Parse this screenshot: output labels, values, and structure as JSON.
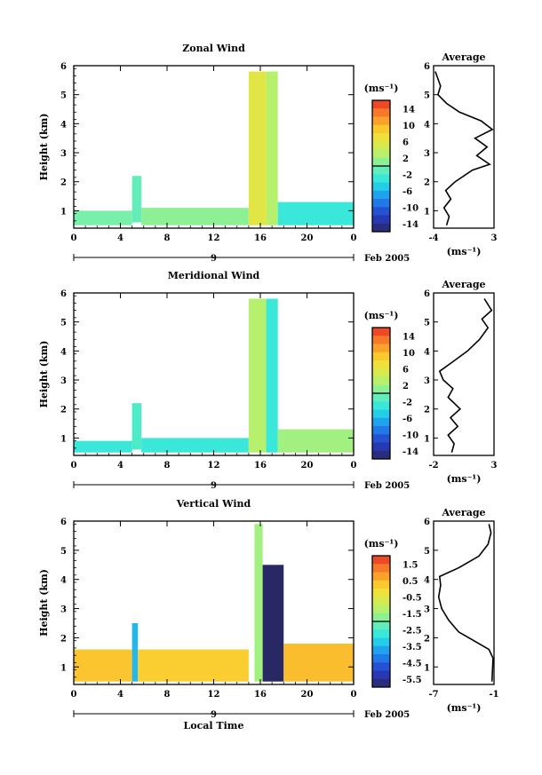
{
  "chart_data": [
    {
      "type": "heatmap",
      "title": "Zonal Wind",
      "ylabel": "Height (km)",
      "xlabel": "",
      "x_ticks": [
        "0",
        "4",
        "8",
        "12",
        "16",
        "20",
        "0"
      ],
      "xlim": [
        0,
        24
      ],
      "ylim": [
        0.4,
        6
      ],
      "y_ticks": [
        "1",
        "2",
        "3",
        "4",
        "5",
        "6"
      ],
      "date_mark": "9",
      "date_label": "Feb 2005",
      "colorbar_unit": "(ms⁻¹)",
      "colorbar_ticks": [
        "14",
        "10",
        "6",
        "2",
        "-2",
        "-6",
        "-10",
        "-14"
      ],
      "colorbar_range": [
        -16,
        16
      ],
      "panels": [
        {
          "x": [
            0,
            5
          ],
          "y": [
            0.5,
            1.0
          ],
          "value": 0
        },
        {
          "x": [
            5,
            5.8
          ],
          "y": [
            0.6,
            2.2
          ],
          "value": -1
        },
        {
          "x": [
            5.8,
            15
          ],
          "y": [
            0.5,
            1.1
          ],
          "value": 1
        },
        {
          "x": [
            15,
            16.5
          ],
          "y": [
            0.5,
            5.8
          ],
          "value": 6
        },
        {
          "x": [
            16.5,
            17.5
          ],
          "y": [
            0.5,
            5.8
          ],
          "value": 3
        },
        {
          "x": [
            17.5,
            24
          ],
          "y": [
            0.5,
            1.3
          ],
          "value": -3
        }
      ],
      "profile": {
        "title": "Average",
        "xlabel": "(ms⁻¹)",
        "x_ticks": [
          "-4",
          "3"
        ],
        "xlim": [
          -4,
          3
        ],
        "points": [
          [
            -2.5,
            0.5
          ],
          [
            -2.2,
            0.8
          ],
          [
            -2.8,
            1.1
          ],
          [
            -2.0,
            1.4
          ],
          [
            -2.6,
            1.7
          ],
          [
            -1.5,
            2.0
          ],
          [
            0.5,
            2.4
          ],
          [
            2.5,
            2.6
          ],
          [
            1.0,
            2.9
          ],
          [
            2.2,
            3.2
          ],
          [
            0.8,
            3.5
          ],
          [
            2.8,
            3.8
          ],
          [
            1.5,
            4.1
          ],
          [
            -1.0,
            4.4
          ],
          [
            -2.5,
            4.7
          ],
          [
            -3.5,
            5.0
          ],
          [
            -3.2,
            5.3
          ],
          [
            -3.8,
            5.8
          ]
        ]
      }
    },
    {
      "type": "heatmap",
      "title": "Meridional Wind",
      "ylabel": "Height (km)",
      "xlabel": "",
      "x_ticks": [
        "0",
        "4",
        "8",
        "12",
        "16",
        "20",
        "0"
      ],
      "xlim": [
        0,
        24
      ],
      "ylim": [
        0.4,
        6
      ],
      "y_ticks": [
        "1",
        "2",
        "3",
        "4",
        "5",
        "6"
      ],
      "date_mark": "9",
      "date_label": "Feb 2005",
      "colorbar_unit": "(ms⁻¹)",
      "colorbar_ticks": [
        "14",
        "10",
        "6",
        "2",
        "-2",
        "-6",
        "-10",
        "-14"
      ],
      "colorbar_range": [
        -16,
        16
      ],
      "panels": [
        {
          "x": [
            0,
            5
          ],
          "y": [
            0.5,
            0.9
          ],
          "value": -3
        },
        {
          "x": [
            5,
            5.8
          ],
          "y": [
            0.6,
            2.2
          ],
          "value": -2
        },
        {
          "x": [
            5.8,
            15
          ],
          "y": [
            0.5,
            1.0
          ],
          "value": -3
        },
        {
          "x": [
            15,
            16.5
          ],
          "y": [
            0.5,
            5.8
          ],
          "value": 3
        },
        {
          "x": [
            16.5,
            17.5
          ],
          "y": [
            0.5,
            5.8
          ],
          "value": -3
        },
        {
          "x": [
            17.5,
            24
          ],
          "y": [
            0.5,
            1.3
          ],
          "value": 2
        }
      ],
      "profile": {
        "title": "Average",
        "xlabel": "(ms⁻¹)",
        "x_ticks": [
          "-2",
          "3"
        ],
        "xlim": [
          -2,
          3
        ],
        "points": [
          [
            -0.5,
            0.5
          ],
          [
            -0.3,
            0.8
          ],
          [
            -0.8,
            1.1
          ],
          [
            0.0,
            1.4
          ],
          [
            -0.6,
            1.7
          ],
          [
            0.2,
            2.0
          ],
          [
            -0.8,
            2.4
          ],
          [
            -0.4,
            2.7
          ],
          [
            -1.2,
            3.0
          ],
          [
            -1.5,
            3.3
          ],
          [
            -0.5,
            3.6
          ],
          [
            0.8,
            4.0
          ],
          [
            1.8,
            4.4
          ],
          [
            2.5,
            4.8
          ],
          [
            2.0,
            5.1
          ],
          [
            2.8,
            5.4
          ],
          [
            2.2,
            5.8
          ]
        ]
      }
    },
    {
      "type": "heatmap",
      "title": "Vertical Wind",
      "ylabel": "Height (km)",
      "xlabel": "Local Time",
      "x_ticks": [
        "0",
        "4",
        "8",
        "12",
        "16",
        "20",
        "0"
      ],
      "xlim": [
        0,
        24
      ],
      "ylim": [
        0.4,
        6
      ],
      "y_ticks": [
        "1",
        "2",
        "3",
        "4",
        "5",
        "6"
      ],
      "date_mark": "9",
      "date_label": "Feb 2005",
      "colorbar_unit": "(ms⁻¹)",
      "colorbar_ticks": [
        "1.5",
        "0.5",
        "-0.5",
        "-1.5",
        "-2.5",
        "-3.5",
        "-4.5",
        "-5.5"
      ],
      "colorbar_range": [
        -6,
        2
      ],
      "panels": [
        {
          "x": [
            0,
            5
          ],
          "y": [
            0.5,
            1.6
          ],
          "value": 0.3
        },
        {
          "x": [
            5,
            5.5
          ],
          "y": [
            0.5,
            2.5
          ],
          "value": -3.5
        },
        {
          "x": [
            5.5,
            15
          ],
          "y": [
            0.5,
            1.6
          ],
          "value": 0.2
        },
        {
          "x": [
            15.5,
            16.2
          ],
          "y": [
            0.5,
            5.9
          ],
          "value": -1.5
        },
        {
          "x": [
            16.2,
            18
          ],
          "y": [
            0.5,
            4.5
          ],
          "value": -6
        },
        {
          "x": [
            18,
            24
          ],
          "y": [
            0.5,
            1.8
          ],
          "value": 0.4
        }
      ],
      "profile": {
        "title": "Average",
        "xlabel": "(ms⁻¹)",
        "x_ticks": [
          "-7",
          "-1"
        ],
        "xlim": [
          -7,
          -1
        ],
        "points": [
          [
            -1.2,
            0.5
          ],
          [
            -1.1,
            1.3
          ],
          [
            -1.5,
            1.6
          ],
          [
            -3.0,
            1.9
          ],
          [
            -4.5,
            2.2
          ],
          [
            -5.5,
            2.6
          ],
          [
            -6.2,
            3.0
          ],
          [
            -6.5,
            3.4
          ],
          [
            -6.3,
            3.8
          ],
          [
            -6.4,
            4.1
          ],
          [
            -4.5,
            4.4
          ],
          [
            -2.5,
            4.8
          ],
          [
            -1.6,
            5.2
          ],
          [
            -1.3,
            5.6
          ],
          [
            -1.5,
            5.9
          ]
        ]
      }
    }
  ]
}
